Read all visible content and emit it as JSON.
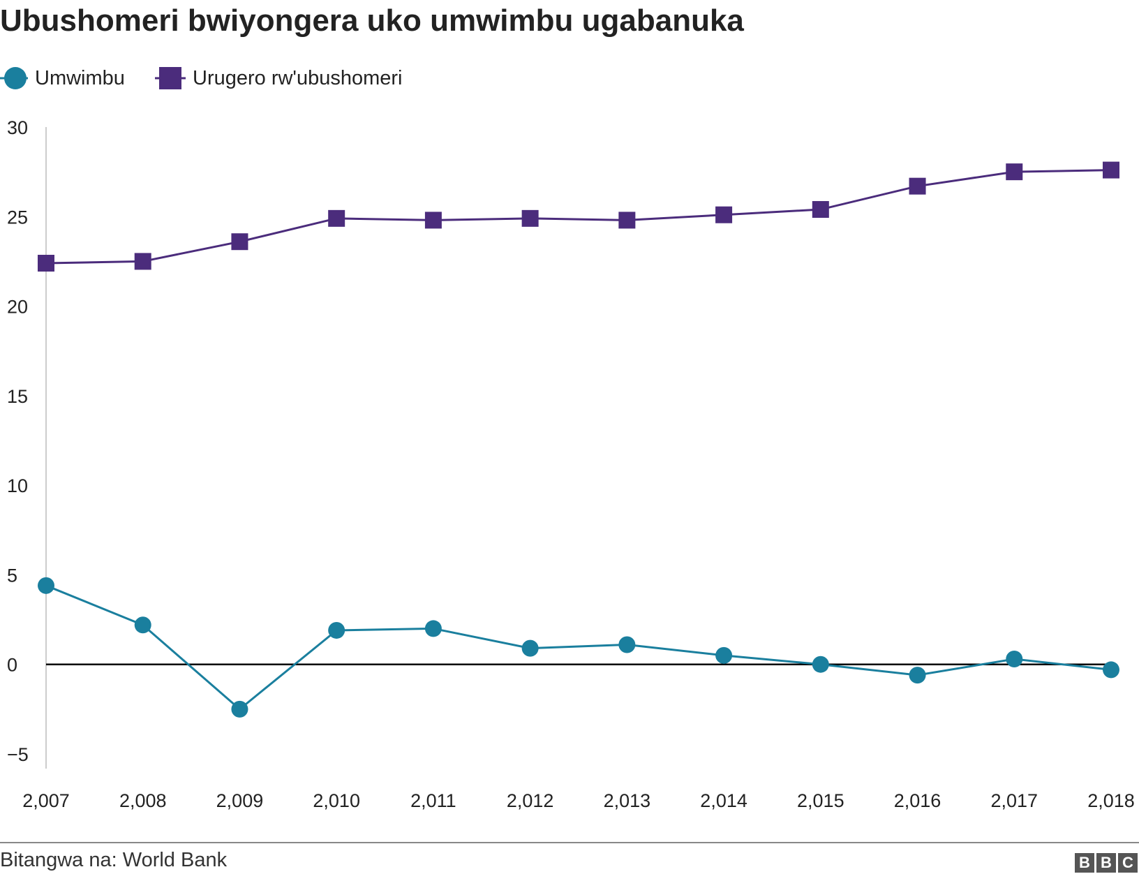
{
  "title": "Ubushomeri bwiyongera uko umwimbu ugabanuka",
  "source": "Bitangwa na: World Bank",
  "logo": [
    "B",
    "B",
    "C"
  ],
  "colors": {
    "growth": "#1a7f9e",
    "unemployment": "#4b2c7c",
    "zero_line": "#000000",
    "axis": "#cccccc"
  },
  "chart_data": {
    "type": "line",
    "x": [
      "2,007",
      "2,008",
      "2,009",
      "2,010",
      "2,011",
      "2,012",
      "2,013",
      "2,014",
      "2,015",
      "2,016",
      "2,017",
      "2,018"
    ],
    "ylim": [
      -5,
      30
    ],
    "yticks": [
      "30",
      "25",
      "20",
      "15",
      "10",
      "5",
      "0",
      "−5"
    ],
    "ytick_values": [
      30,
      25,
      20,
      15,
      10,
      5,
      0,
      -5
    ],
    "grid": false,
    "legend": "top-left",
    "series": [
      {
        "name": "Umwimbu",
        "marker": "circle",
        "values": [
          4.4,
          2.2,
          -2.5,
          1.9,
          2.0,
          0.9,
          1.1,
          0.5,
          0.0,
          -0.6,
          0.3,
          -0.3
        ]
      },
      {
        "name": "Urugero rw'ubushomeri",
        "marker": "square",
        "values": [
          22.4,
          22.5,
          23.6,
          24.9,
          24.8,
          24.9,
          24.8,
          25.1,
          25.4,
          26.7,
          27.5,
          27.6
        ]
      }
    ]
  }
}
